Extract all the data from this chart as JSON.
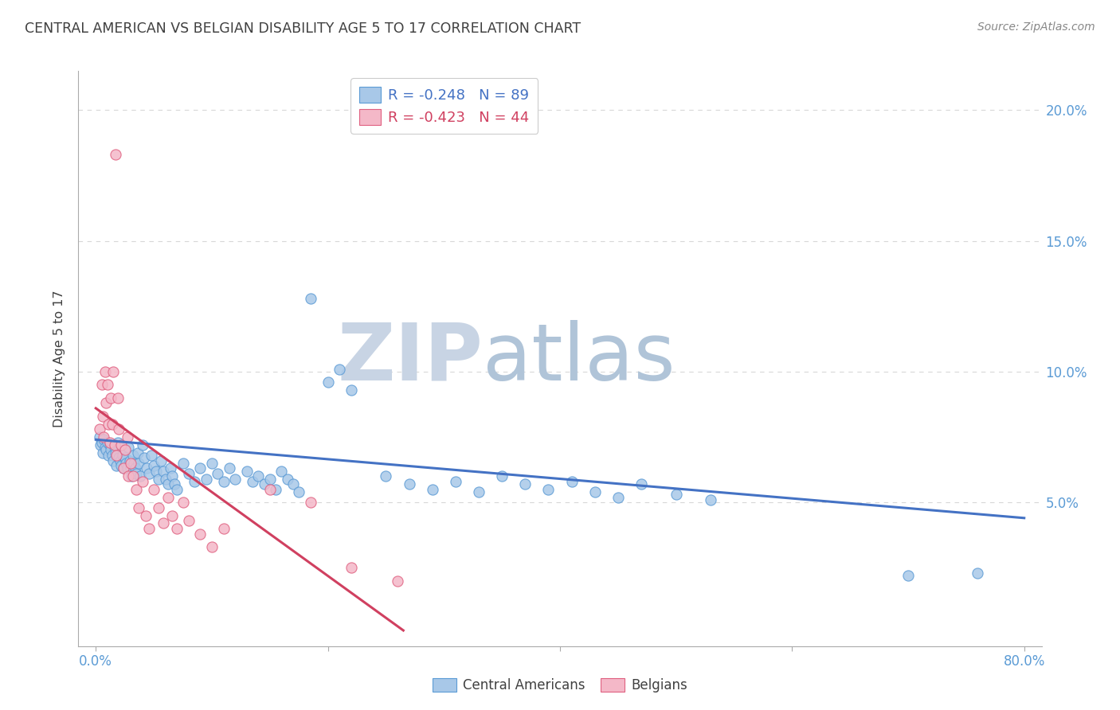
{
  "title": "CENTRAL AMERICAN VS BELGIAN DISABILITY AGE 5 TO 17 CORRELATION CHART",
  "source": "Source: ZipAtlas.com",
  "ylabel": "Disability Age 5 to 17",
  "yticks": [
    "5.0%",
    "10.0%",
    "15.0%",
    "20.0%"
  ],
  "ytick_vals": [
    0.05,
    0.1,
    0.15,
    0.2
  ],
  "xtick_vals": [
    0.0,
    0.2,
    0.4,
    0.6,
    0.8
  ],
  "xtick_labels": [
    "0.0%",
    "",
    "",
    "",
    "80.0%"
  ],
  "legend_blue_r": "-0.248",
  "legend_blue_n": "89",
  "legend_pink_r": "-0.423",
  "legend_pink_n": "44",
  "legend_label_blue": "Central Americans",
  "legend_label_pink": "Belgians",
  "blue_color": "#a8c8e8",
  "pink_color": "#f4b8c8",
  "blue_edge_color": "#5b9bd5",
  "pink_edge_color": "#e06080",
  "blue_line_color": "#4472c4",
  "pink_line_color": "#d04060",
  "title_color": "#404040",
  "axis_label_color": "#5b9bd5",
  "tick_color": "#5b9bd5",
  "grid_color": "#d8d8d8",
  "watermark_zip_color": "#c8d4e4",
  "watermark_atlas_color": "#b0c4d8",
  "blue_scatter": [
    [
      0.003,
      0.075
    ],
    [
      0.004,
      0.072
    ],
    [
      0.005,
      0.073
    ],
    [
      0.006,
      0.069
    ],
    [
      0.007,
      0.074
    ],
    [
      0.008,
      0.071
    ],
    [
      0.009,
      0.07
    ],
    [
      0.01,
      0.073
    ],
    [
      0.011,
      0.068
    ],
    [
      0.012,
      0.072
    ],
    [
      0.013,
      0.07
    ],
    [
      0.014,
      0.068
    ],
    [
      0.015,
      0.066
    ],
    [
      0.016,
      0.071
    ],
    [
      0.017,
      0.069
    ],
    [
      0.018,
      0.064
    ],
    [
      0.019,
      0.073
    ],
    [
      0.02,
      0.067
    ],
    [
      0.021,
      0.066
    ],
    [
      0.022,
      0.064
    ],
    [
      0.023,
      0.068
    ],
    [
      0.024,
      0.063
    ],
    [
      0.025,
      0.067
    ],
    [
      0.026,
      0.065
    ],
    [
      0.027,
      0.063
    ],
    [
      0.028,
      0.071
    ],
    [
      0.029,
      0.066
    ],
    [
      0.03,
      0.063
    ],
    [
      0.031,
      0.06
    ],
    [
      0.032,
      0.068
    ],
    [
      0.033,
      0.065
    ],
    [
      0.034,
      0.063
    ],
    [
      0.035,
      0.061
    ],
    [
      0.036,
      0.069
    ],
    [
      0.037,
      0.065
    ],
    [
      0.038,
      0.06
    ],
    [
      0.04,
      0.072
    ],
    [
      0.042,
      0.067
    ],
    [
      0.044,
      0.063
    ],
    [
      0.046,
      0.061
    ],
    [
      0.048,
      0.068
    ],
    [
      0.05,
      0.064
    ],
    [
      0.052,
      0.062
    ],
    [
      0.054,
      0.059
    ],
    [
      0.056,
      0.066
    ],
    [
      0.058,
      0.062
    ],
    [
      0.06,
      0.059
    ],
    [
      0.062,
      0.057
    ],
    [
      0.064,
      0.063
    ],
    [
      0.066,
      0.06
    ],
    [
      0.068,
      0.057
    ],
    [
      0.07,
      0.055
    ],
    [
      0.075,
      0.065
    ],
    [
      0.08,
      0.061
    ],
    [
      0.085,
      0.058
    ],
    [
      0.09,
      0.063
    ],
    [
      0.095,
      0.059
    ],
    [
      0.1,
      0.065
    ],
    [
      0.105,
      0.061
    ],
    [
      0.11,
      0.058
    ],
    [
      0.115,
      0.063
    ],
    [
      0.12,
      0.059
    ],
    [
      0.13,
      0.062
    ],
    [
      0.135,
      0.058
    ],
    [
      0.14,
      0.06
    ],
    [
      0.145,
      0.057
    ],
    [
      0.15,
      0.059
    ],
    [
      0.155,
      0.055
    ],
    [
      0.16,
      0.062
    ],
    [
      0.165,
      0.059
    ],
    [
      0.17,
      0.057
    ],
    [
      0.175,
      0.054
    ],
    [
      0.185,
      0.128
    ],
    [
      0.2,
      0.096
    ],
    [
      0.21,
      0.101
    ],
    [
      0.22,
      0.093
    ],
    [
      0.25,
      0.06
    ],
    [
      0.27,
      0.057
    ],
    [
      0.29,
      0.055
    ],
    [
      0.31,
      0.058
    ],
    [
      0.33,
      0.054
    ],
    [
      0.35,
      0.06
    ],
    [
      0.37,
      0.057
    ],
    [
      0.39,
      0.055
    ],
    [
      0.41,
      0.058
    ],
    [
      0.43,
      0.054
    ],
    [
      0.45,
      0.052
    ],
    [
      0.47,
      0.057
    ],
    [
      0.5,
      0.053
    ],
    [
      0.53,
      0.051
    ],
    [
      0.7,
      0.022
    ],
    [
      0.76,
      0.023
    ]
  ],
  "pink_scatter": [
    [
      0.003,
      0.078
    ],
    [
      0.005,
      0.095
    ],
    [
      0.006,
      0.083
    ],
    [
      0.007,
      0.075
    ],
    [
      0.008,
      0.1
    ],
    [
      0.009,
      0.088
    ],
    [
      0.01,
      0.095
    ],
    [
      0.011,
      0.08
    ],
    [
      0.012,
      0.073
    ],
    [
      0.013,
      0.09
    ],
    [
      0.014,
      0.08
    ],
    [
      0.015,
      0.1
    ],
    [
      0.016,
      0.072
    ],
    [
      0.017,
      0.183
    ],
    [
      0.018,
      0.068
    ],
    [
      0.019,
      0.09
    ],
    [
      0.02,
      0.078
    ],
    [
      0.022,
      0.072
    ],
    [
      0.024,
      0.063
    ],
    [
      0.025,
      0.07
    ],
    [
      0.027,
      0.075
    ],
    [
      0.028,
      0.06
    ],
    [
      0.03,
      0.065
    ],
    [
      0.032,
      0.06
    ],
    [
      0.035,
      0.055
    ],
    [
      0.037,
      0.048
    ],
    [
      0.04,
      0.058
    ],
    [
      0.043,
      0.045
    ],
    [
      0.046,
      0.04
    ],
    [
      0.05,
      0.055
    ],
    [
      0.054,
      0.048
    ],
    [
      0.058,
      0.042
    ],
    [
      0.062,
      0.052
    ],
    [
      0.066,
      0.045
    ],
    [
      0.07,
      0.04
    ],
    [
      0.075,
      0.05
    ],
    [
      0.08,
      0.043
    ],
    [
      0.09,
      0.038
    ],
    [
      0.1,
      0.033
    ],
    [
      0.11,
      0.04
    ],
    [
      0.15,
      0.055
    ],
    [
      0.185,
      0.05
    ],
    [
      0.22,
      0.025
    ],
    [
      0.26,
      0.02
    ]
  ],
  "blue_line_x": [
    0.0,
    0.8
  ],
  "blue_line_y": [
    0.074,
    0.044
  ],
  "pink_line_x": [
    0.0,
    0.265
  ],
  "pink_line_y": [
    0.086,
    0.001
  ],
  "xlim": [
    -0.015,
    0.815
  ],
  "ylim": [
    -0.005,
    0.215
  ],
  "figsize": [
    14.06,
    8.92
  ],
  "dpi": 100
}
